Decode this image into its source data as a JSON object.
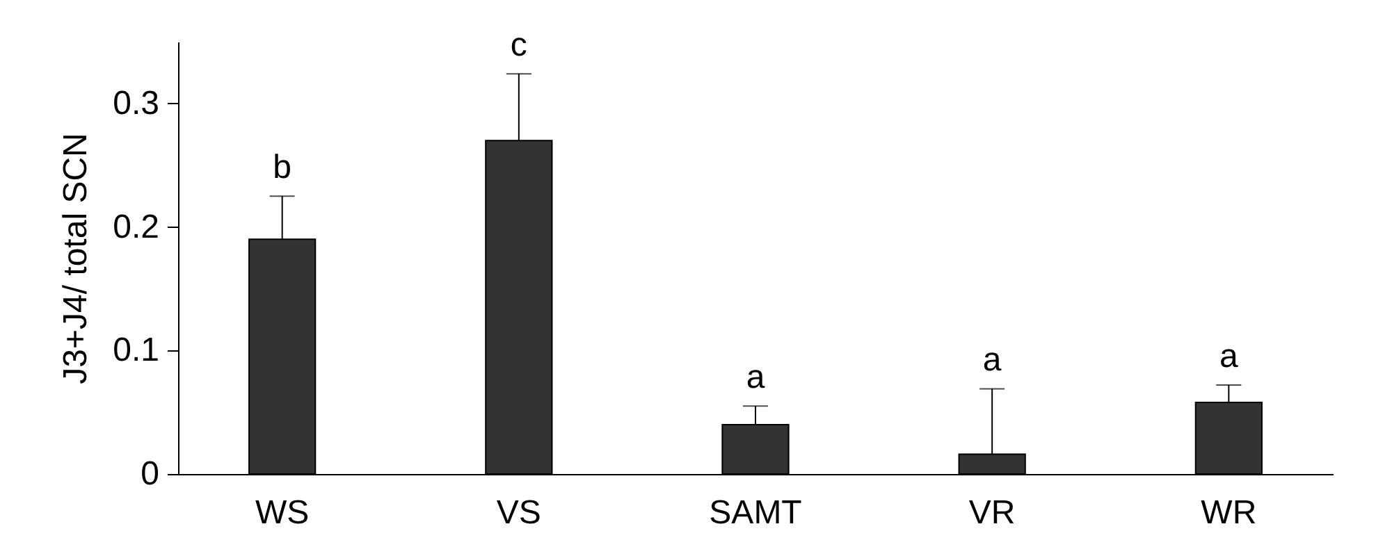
{
  "chart_data": {
    "type": "bar",
    "ylabel": "J3+J4/ total SCN",
    "categories": [
      "WS",
      "VS",
      "SAMT",
      "VR",
      "WR"
    ],
    "values": [
      0.19,
      0.27,
      0.04,
      0.016,
      0.058
    ],
    "errors": [
      [
        0.19,
        0.225
      ],
      [
        0.27,
        0.324
      ],
      [
        0.04,
        0.055
      ],
      [
        0.016,
        0.069
      ],
      [
        0.058,
        0.072
      ]
    ],
    "color": "#333333",
    "ylim": [
      0,
      0.35
    ],
    "yticks": [
      0,
      0.1,
      0.2,
      0.3
    ],
    "grid": false,
    "annotations": [
      {
        "text": "b",
        "x": "WS",
        "y": 0.225
      },
      {
        "text": "c",
        "x": "VS",
        "y": 0.324
      },
      {
        "text": "a",
        "x": "SAMT",
        "y": 0.055
      },
      {
        "text": "a",
        "x": "VR",
        "y": 0.069
      },
      {
        "text": "a",
        "x": "WR",
        "y": 0.072
      }
    ]
  }
}
